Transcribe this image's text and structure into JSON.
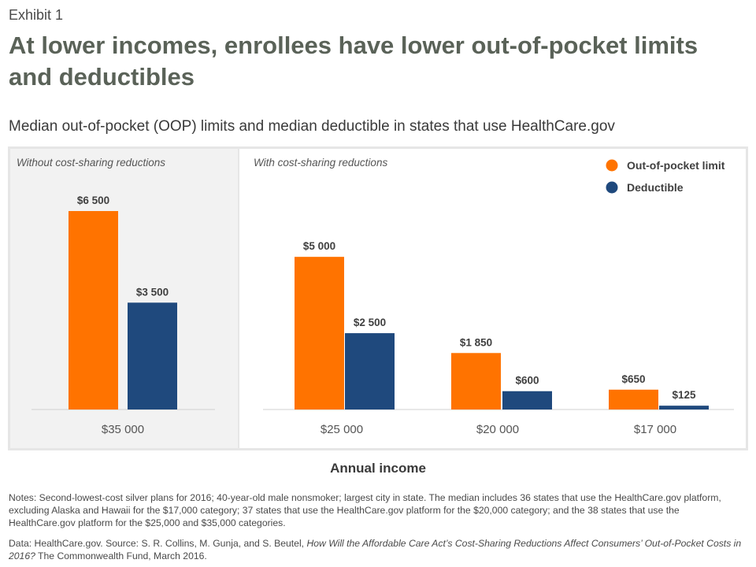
{
  "header": {
    "exhibit": "Exhibit 1",
    "title": "At lower incomes, enrollees have lower out-of-pocket limits and deductibles",
    "subtitle": "Median out-of-pocket (OOP) limits and median deductible in states that use HealthCare.gov"
  },
  "chart_data": {
    "type": "bar",
    "xlabel": "Annual income",
    "ylabel": "",
    "ylim": [
      0,
      7000
    ],
    "grid": false,
    "legend_position": "top-right",
    "panels": [
      {
        "label": "Without cost-sharing reductions",
        "categories": [
          "$35 000"
        ]
      },
      {
        "label": "With cost-sharing reductions",
        "categories": [
          "$25 000",
          "$20 000",
          "$17 000"
        ]
      }
    ],
    "categories": [
      "$35 000",
      "$25 000",
      "$20 000",
      "$17 000"
    ],
    "series": [
      {
        "name": "Out-of-pocket limit",
        "color": "#ff7300",
        "values": [
          6500,
          5000,
          1850,
          650
        ],
        "labels": [
          "$6 500",
          "$5 000",
          "$1 850",
          "$650"
        ]
      },
      {
        "name": "Deductible",
        "color": "#1f497d",
        "values": [
          3500,
          2500,
          600,
          125
        ],
        "labels": [
          "$3 500",
          "$2 500",
          "$600",
          "$125"
        ]
      }
    ]
  },
  "footer": {
    "notes": "Notes: Second-lowest-cost silver plans for 2016; 40-year-old male nonsmoker; largest city in state. The median includes 36 states that use the HealthCare.gov platform, excluding Alaska and Hawaii for the $17,000 category; 37 states that use the HealthCare.gov platform for the $20,000 category; and the 38 states that use the HealthCare.gov platform for the $25,000 and $35,000 categories.",
    "source_prefix": "Data: HealthCare.gov. Source: S. R. Collins, M. Gunja, and S. Beutel, ",
    "source_title": "How Will the Affordable Care Act’s Cost-Sharing Reductions Affect Consumers’ Out-of-Pocket Costs in 2016?",
    "source_suffix": " The Commonwealth Fund, March 2016."
  }
}
